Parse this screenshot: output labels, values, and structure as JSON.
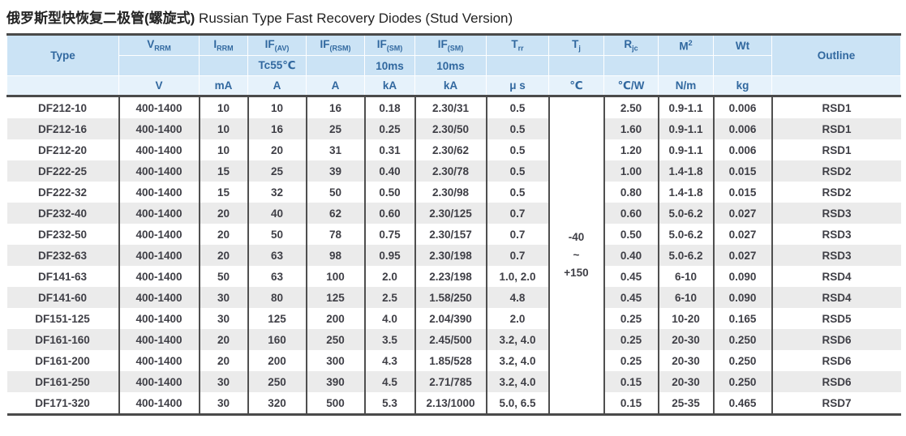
{
  "title": {
    "zh": "俄罗斯型快恢复二极管(螺旋式)",
    "en": " Russian Type Fast Recovery Diodes (Stud Version)"
  },
  "colors": {
    "header_bg": "#cbe3f5",
    "units_bg": "#e6f2fb",
    "header_text": "#31689f",
    "body_text": "#3f3f46",
    "stripe": "#ebebeb",
    "border": "#4a4a4a"
  },
  "table": {
    "header": {
      "row1": [
        {
          "text": "Type"
        },
        {
          "main": "V",
          "sub": "RRM"
        },
        {
          "main": "I",
          "sub": "RRM"
        },
        {
          "main": "IF",
          "sub": "(AV)"
        },
        {
          "main": "IF",
          "sub": "(RSM)"
        },
        {
          "main": "IF",
          "sub": "(SM)"
        },
        {
          "main": "IF",
          "sub": "(SM)"
        },
        {
          "main": "T",
          "sub": "rr"
        },
        {
          "main": "T",
          "sub": "j"
        },
        {
          "main": "R",
          "sub": "jc"
        },
        {
          "main": "M",
          "sup": "2"
        },
        {
          "main": "Wt"
        },
        {
          "text": "Outline"
        }
      ],
      "row2": [
        "",
        "",
        "Tc55℃",
        "",
        "10ms",
        "10ms",
        "",
        "",
        "",
        "",
        ""
      ],
      "row3": [
        "",
        "V",
        "mA",
        "A",
        "A",
        "kA",
        "kA",
        "μ s",
        "℃",
        "℃/W",
        "N/m",
        "kg",
        ""
      ]
    },
    "tj": [
      "-40",
      "~",
      "+150"
    ],
    "rows": [
      [
        "DF212-10",
        "400-1400",
        "10",
        "10",
        "16",
        "0.18",
        "2.30/31",
        "0.5",
        "2.50",
        "0.9-1.1",
        "0.006",
        "RSD1"
      ],
      [
        "DF212-16",
        "400-1400",
        "10",
        "16",
        "25",
        "0.25",
        "2.30/50",
        "0.5",
        "1.60",
        "0.9-1.1",
        "0.006",
        "RSD1"
      ],
      [
        "DF212-20",
        "400-1400",
        "10",
        "20",
        "31",
        "0.31",
        "2.30/62",
        "0.5",
        "1.20",
        "0.9-1.1",
        "0.006",
        "RSD1"
      ],
      [
        "DF222-25",
        "400-1400",
        "15",
        "25",
        "39",
        "0.40",
        "2.30/78",
        "0.5",
        "1.00",
        "1.4-1.8",
        "0.015",
        "RSD2"
      ],
      [
        "DF222-32",
        "400-1400",
        "15",
        "32",
        "50",
        "0.50",
        "2.30/98",
        "0.5",
        "0.80",
        "1.4-1.8",
        "0.015",
        "RSD2"
      ],
      [
        "DF232-40",
        "400-1400",
        "20",
        "40",
        "62",
        "0.60",
        "2.30/125",
        "0.7",
        "0.60",
        "5.0-6.2",
        "0.027",
        "RSD3"
      ],
      [
        "DF232-50",
        "400-1400",
        "20",
        "50",
        "78",
        "0.75",
        "2.30/157",
        "0.7",
        "0.50",
        "5.0-6.2",
        "0.027",
        "RSD3"
      ],
      [
        "DF232-63",
        "400-1400",
        "20",
        "63",
        "98",
        "0.95",
        "2.30/198",
        "0.7",
        "0.40",
        "5.0-6.2",
        "0.027",
        "RSD3"
      ],
      [
        "DF141-63",
        "400-1400",
        "50",
        "63",
        "100",
        "2.0",
        "2.23/198",
        "1.0, 2.0",
        "0.45",
        "6-10",
        "0.090",
        "RSD4"
      ],
      [
        "DF141-60",
        "400-1400",
        "30",
        "80",
        "125",
        "2.5",
        "1.58/250",
        "4.8",
        "0.45",
        "6-10",
        "0.090",
        "RSD4"
      ],
      [
        "DF151-125",
        "400-1400",
        "30",
        "125",
        "200",
        "4.0",
        "2.04/390",
        "2.0",
        "0.25",
        "10-20",
        "0.165",
        "RSD5"
      ],
      [
        "DF161-160",
        "400-1400",
        "20",
        "160",
        "250",
        "3.5",
        "2.45/500",
        "3.2, 4.0",
        "0.25",
        "20-30",
        "0.250",
        "RSD6"
      ],
      [
        "DF161-200",
        "400-1400",
        "20",
        "200",
        "300",
        "4.3",
        "1.85/528",
        "3.2, 4.0",
        "0.25",
        "20-30",
        "0.250",
        "RSD6"
      ],
      [
        "DF161-250",
        "400-1400",
        "30",
        "250",
        "390",
        "4.5",
        "2.71/785",
        "3.2, 4.0",
        "0.15",
        "20-30",
        "0.250",
        "RSD6"
      ],
      [
        "DF171-320",
        "400-1400",
        "30",
        "320",
        "500",
        "5.3",
        "2.13/1000",
        "5.0, 6.5",
        "0.15",
        "25-35",
        "0.465",
        "RSD7"
      ]
    ]
  }
}
